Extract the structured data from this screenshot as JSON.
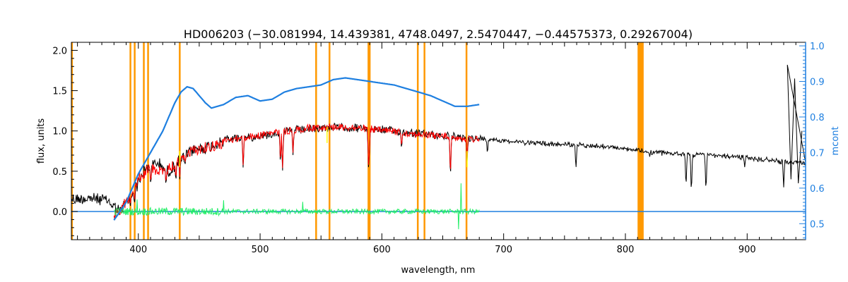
{
  "chart_data": {
    "type": "line",
    "title": "HD006203    (−30.081994, 14.439381, 4748.0497, 2.5470447, −0.44575373, 0.29267004)",
    "xlabel": "wavelength, nm",
    "ylabel": "flux, units",
    "y2label": "mcont",
    "xlim": [
      345,
      948
    ],
    "ylim": [
      -0.35,
      2.1
    ],
    "y2lim": [
      0.455,
      1.01
    ],
    "x_ticks": [
      400,
      500,
      600,
      700,
      800,
      900
    ],
    "y_ticks": [
      0.0,
      0.5,
      1.0,
      1.5,
      2.0
    ],
    "y_tick_labels": [
      "0.0",
      "0.5",
      "1.0",
      "1.5",
      "2.0"
    ],
    "y2_ticks": [
      0.5,
      0.6,
      0.7,
      0.8,
      0.9,
      1.0
    ],
    "y2_tick_labels": [
      "0.5",
      "0.6",
      "0.7",
      "0.8",
      "0.9",
      "1.0"
    ],
    "grid": false,
    "colors": {
      "observed": "#000000",
      "model": "#ff0000",
      "residual": "#22ee66",
      "mcont": "#1e7fe0",
      "masks": "#ff9900",
      "highlight": "#ffff00"
    },
    "mask_lines": [
      345.5,
      393.5,
      397.0,
      404.5,
      408.0,
      434.0,
      546.0,
      557.0,
      589.0,
      590.0,
      629.5,
      635.0,
      669.5
    ],
    "mask_band": [
      810.0,
      815.0
    ],
    "observed_envelope": {
      "x": [
        345,
        360,
        375,
        385,
        395,
        405,
        415,
        425,
        435,
        445,
        455,
        470,
        485,
        500,
        520,
        540,
        560,
        580,
        600,
        620,
        640,
        660,
        680,
        700,
        720,
        740,
        760,
        780,
        800,
        820,
        840,
        860,
        880,
        900,
        920,
        935,
        948
      ],
      "y": [
        0.22,
        0.24,
        0.2,
        0.07,
        0.28,
        0.58,
        0.68,
        0.56,
        0.72,
        0.84,
        0.86,
        0.94,
        0.96,
        0.98,
        1.04,
        1.07,
        1.09,
        1.08,
        1.06,
        1.03,
        1.0,
        0.97,
        0.94,
        0.9,
        0.88,
        0.86,
        0.85,
        0.83,
        0.8,
        0.76,
        0.74,
        0.73,
        0.71,
        0.69,
        0.66,
        0.63,
        0.62
      ]
    },
    "model_envelope": {
      "x": [
        380,
        390,
        400,
        410,
        420,
        430,
        440,
        450,
        460,
        470,
        480,
        490,
        500,
        510,
        520,
        530,
        540,
        550,
        560,
        570,
        580,
        590,
        600,
        610,
        620,
        630,
        640,
        650,
        660,
        670,
        680
      ],
      "y": [
        0.02,
        0.18,
        0.48,
        0.62,
        0.55,
        0.66,
        0.8,
        0.85,
        0.88,
        0.92,
        0.95,
        0.97,
        0.99,
        1.02,
        1.04,
        1.06,
        1.08,
        1.09,
        1.1,
        1.09,
        1.08,
        1.07,
        1.05,
        1.04,
        1.02,
        1.0,
        0.99,
        0.98,
        0.97,
        0.95,
        0.94
      ]
    },
    "mcont": {
      "x": [
        380,
        390,
        400,
        410,
        420,
        430,
        435,
        440,
        445,
        450,
        455,
        460,
        470,
        480,
        490,
        500,
        510,
        520,
        530,
        540,
        550,
        560,
        570,
        580,
        590,
        600,
        610,
        620,
        630,
        640,
        650,
        660,
        670,
        680
      ],
      "y": [
        0.51,
        0.56,
        0.64,
        0.7,
        0.76,
        0.84,
        0.87,
        0.885,
        0.88,
        0.86,
        0.84,
        0.825,
        0.835,
        0.855,
        0.86,
        0.845,
        0.85,
        0.87,
        0.88,
        0.885,
        0.89,
        0.905,
        0.91,
        0.905,
        0.9,
        0.895,
        0.89,
        0.88,
        0.87,
        0.86,
        0.845,
        0.83,
        0.83,
        0.835
      ]
    },
    "absorption_lines": [
      {
        "x": 393.4,
        "y": 0.05
      },
      {
        "x": 396.8,
        "y": 0.06
      },
      {
        "x": 410.2,
        "y": 0.3
      },
      {
        "x": 422.7,
        "y": 0.3
      },
      {
        "x": 430.8,
        "y": 0.35
      },
      {
        "x": 434.0,
        "y": 0.4
      },
      {
        "x": 438.3,
        "y": 0.55
      },
      {
        "x": 486.1,
        "y": 0.5
      },
      {
        "x": 516.7,
        "y": 0.55
      },
      {
        "x": 518.4,
        "y": 0.45
      },
      {
        "x": 527.0,
        "y": 0.7
      },
      {
        "x": 589.0,
        "y": 0.55
      },
      {
        "x": 589.6,
        "y": 0.6
      },
      {
        "x": 616.2,
        "y": 0.75
      },
      {
        "x": 656.3,
        "y": 0.38
      },
      {
        "x": 670.0,
        "y": 0.62
      },
      {
        "x": 686.7,
        "y": 0.7
      },
      {
        "x": 759.4,
        "y": 0.52
      },
      {
        "x": 820.0,
        "y": 0.68
      },
      {
        "x": 849.8,
        "y": 0.28
      },
      {
        "x": 854.2,
        "y": 0.2
      },
      {
        "x": 866.2,
        "y": 0.22
      },
      {
        "x": 898.0,
        "y": 0.55
      },
      {
        "x": 930.0,
        "y": 0.3
      }
    ],
    "red_end_spike": {
      "x": [
        933,
        936,
        939,
        942,
        945
      ],
      "y": [
        1.82,
        0.4,
        1.65,
        0.35,
        1.0
      ]
    },
    "residual": {
      "x_range": [
        380,
        680
      ],
      "baseline": 0.0,
      "amplitude": 0.06,
      "spikes": [
        {
          "x": 399,
          "y": 0.15
        },
        {
          "x": 470,
          "y": 0.14
        },
        {
          "x": 535,
          "y": 0.12
        },
        {
          "x": 665,
          "y": 0.35
        },
        {
          "x": 663,
          "y": -0.22
        }
      ]
    },
    "zero_line": {
      "x_range": [
        345,
        948
      ],
      "y": 0.0
    }
  }
}
